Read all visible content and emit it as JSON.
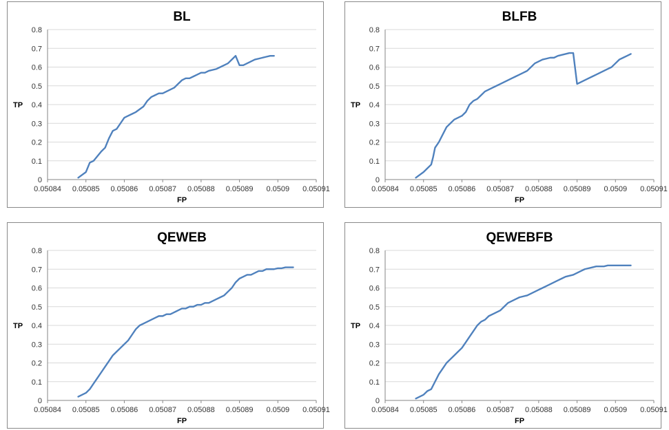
{
  "chart_data": [
    {
      "type": "line",
      "title": "BL",
      "xlabel": "FP",
      "ylabel": "TP",
      "xlim": [
        0.05084,
        0.05091
      ],
      "ylim": [
        0,
        0.8
      ],
      "x_ticks": [
        "0.05084",
        "0.05085",
        "0.05086",
        "0.05087",
        "0.05088",
        "0.05089",
        "0.0509",
        "0.05091"
      ],
      "y_ticks": [
        "0",
        "0.1",
        "0.2",
        "0.3",
        "0.4",
        "0.5",
        "0.6",
        "0.7",
        "0.8"
      ],
      "grid": true,
      "legend": "none",
      "color": "#4f81bd",
      "x": [
        0.050848,
        0.05085,
        0.050851,
        0.050852,
        0.050854,
        0.050855,
        0.050856,
        0.050857,
        0.050858,
        0.050859,
        0.05086,
        0.050861,
        0.050862,
        0.050863,
        0.050865,
        0.050866,
        0.050867,
        0.050868,
        0.050869,
        0.05087,
        0.050871,
        0.050872,
        0.050873,
        0.050874,
        0.050875,
        0.050876,
        0.050877,
        0.050878,
        0.050879,
        0.05088,
        0.050881,
        0.050882,
        0.050884,
        0.050885,
        0.050886,
        0.050887,
        0.050888,
        0.050889,
        0.05089,
        0.050891,
        0.050892,
        0.050893,
        0.050894,
        0.050895,
        0.050896,
        0.050897,
        0.050898,
        0.050899
      ],
      "y": [
        0.01,
        0.04,
        0.09,
        0.1,
        0.15,
        0.17,
        0.22,
        0.26,
        0.27,
        0.3,
        0.33,
        0.34,
        0.35,
        0.36,
        0.39,
        0.42,
        0.44,
        0.45,
        0.46,
        0.46,
        0.47,
        0.48,
        0.49,
        0.51,
        0.53,
        0.54,
        0.54,
        0.55,
        0.56,
        0.57,
        0.57,
        0.58,
        0.59,
        0.6,
        0.61,
        0.62,
        0.64,
        0.66,
        0.61,
        0.61,
        0.62,
        0.63,
        0.64,
        0.645,
        0.65,
        0.655,
        0.66,
        0.66
      ]
    },
    {
      "type": "line",
      "title": "BLFB",
      "xlabel": "FP",
      "ylabel": "TP",
      "xlim": [
        0.05084,
        0.05091
      ],
      "ylim": [
        0,
        0.8
      ],
      "x_ticks": [
        "0.05084",
        "0.05085",
        "0.05086",
        "0.05087",
        "0.05088",
        "0.05089",
        "0.0509",
        "0.05091"
      ],
      "y_ticks": [
        "0",
        "0.1",
        "0.2",
        "0.3",
        "0.4",
        "0.5",
        "0.6",
        "0.7",
        "0.8"
      ],
      "grid": true,
      "legend": "none",
      "color": "#4f81bd",
      "x": [
        0.050848,
        0.05085,
        0.050851,
        0.050852,
        0.0508525,
        0.050853,
        0.050854,
        0.050855,
        0.050856,
        0.050857,
        0.050858,
        0.050859,
        0.05086,
        0.050861,
        0.050862,
        0.050863,
        0.050864,
        0.050865,
        0.050866,
        0.050867,
        0.050868,
        0.050869,
        0.05087,
        0.050871,
        0.050872,
        0.050873,
        0.050874,
        0.050875,
        0.050876,
        0.050877,
        0.050878,
        0.050879,
        0.05088,
        0.050881,
        0.050882,
        0.050883,
        0.050884,
        0.050885,
        0.050886,
        0.050887,
        0.050888,
        0.050889,
        0.05089,
        0.050891,
        0.050892,
        0.050893,
        0.050894,
        0.050895,
        0.050896,
        0.050897,
        0.050898,
        0.050899,
        0.0509,
        0.050901,
        0.050902,
        0.050903,
        0.050904
      ],
      "y": [
        0.01,
        0.04,
        0.06,
        0.08,
        0.12,
        0.17,
        0.2,
        0.24,
        0.28,
        0.3,
        0.32,
        0.33,
        0.34,
        0.36,
        0.4,
        0.42,
        0.43,
        0.45,
        0.47,
        0.48,
        0.49,
        0.5,
        0.51,
        0.52,
        0.53,
        0.54,
        0.55,
        0.56,
        0.57,
        0.58,
        0.6,
        0.62,
        0.63,
        0.64,
        0.645,
        0.65,
        0.65,
        0.66,
        0.665,
        0.67,
        0.675,
        0.675,
        0.51,
        0.52,
        0.53,
        0.54,
        0.55,
        0.56,
        0.57,
        0.58,
        0.59,
        0.6,
        0.62,
        0.64,
        0.65,
        0.66,
        0.67
      ]
    },
    {
      "type": "line",
      "title": "QEWEB",
      "xlabel": "FP",
      "ylabel": "TP",
      "xlim": [
        0.05084,
        0.05091
      ],
      "ylim": [
        0,
        0.8
      ],
      "x_ticks": [
        "0.05084",
        "0.05085",
        "0.05086",
        "0.05087",
        "0.05088",
        "0.05089",
        "0.0509",
        "0.05091"
      ],
      "y_ticks": [
        "0",
        "0.1",
        "0.2",
        "0.3",
        "0.4",
        "0.5",
        "0.6",
        "0.7",
        "0.8"
      ],
      "grid": true,
      "legend": "none",
      "color": "#4f81bd",
      "x": [
        0.050848,
        0.05085,
        0.050851,
        0.050852,
        0.050853,
        0.050854,
        0.050855,
        0.050856,
        0.050857,
        0.050858,
        0.050859,
        0.05086,
        0.050861,
        0.050862,
        0.050863,
        0.050864,
        0.050865,
        0.050866,
        0.050867,
        0.050868,
        0.050869,
        0.05087,
        0.050871,
        0.050872,
        0.050873,
        0.050874,
        0.050875,
        0.050876,
        0.050877,
        0.050878,
        0.050879,
        0.05088,
        0.050881,
        0.050882,
        0.050883,
        0.050884,
        0.050885,
        0.050886,
        0.050887,
        0.050888,
        0.050889,
        0.05089,
        0.050891,
        0.050892,
        0.050893,
        0.050894,
        0.050895,
        0.050896,
        0.050897,
        0.050898,
        0.050899,
        0.0509,
        0.050901,
        0.050902,
        0.050903,
        0.050904
      ],
      "y": [
        0.02,
        0.04,
        0.06,
        0.09,
        0.12,
        0.15,
        0.18,
        0.21,
        0.24,
        0.26,
        0.28,
        0.3,
        0.32,
        0.35,
        0.38,
        0.4,
        0.41,
        0.42,
        0.43,
        0.44,
        0.45,
        0.45,
        0.46,
        0.46,
        0.47,
        0.48,
        0.49,
        0.49,
        0.5,
        0.5,
        0.51,
        0.51,
        0.52,
        0.52,
        0.53,
        0.54,
        0.55,
        0.56,
        0.58,
        0.6,
        0.63,
        0.65,
        0.66,
        0.67,
        0.67,
        0.68,
        0.69,
        0.69,
        0.7,
        0.7,
        0.7,
        0.705,
        0.705,
        0.71,
        0.71,
        0.71
      ]
    },
    {
      "type": "line",
      "title": "QEWEBFB",
      "xlabel": "FP",
      "ylabel": "TP",
      "xlim": [
        0.05084,
        0.05091
      ],
      "ylim": [
        0,
        0.8
      ],
      "x_ticks": [
        "0.05084",
        "0.05085",
        "0.05086",
        "0.05087",
        "0.05088",
        "0.05089",
        "0.0509",
        "0.05091"
      ],
      "y_ticks": [
        "0",
        "0.1",
        "0.2",
        "0.3",
        "0.4",
        "0.5",
        "0.6",
        "0.7",
        "0.8"
      ],
      "grid": true,
      "legend": "none",
      "color": "#4f81bd",
      "x": [
        0.050848,
        0.05085,
        0.050851,
        0.050852,
        0.050853,
        0.050854,
        0.050855,
        0.050856,
        0.050857,
        0.050858,
        0.050859,
        0.05086,
        0.050861,
        0.050862,
        0.050863,
        0.050864,
        0.050865,
        0.050866,
        0.050867,
        0.050868,
        0.050869,
        0.05087,
        0.050871,
        0.050872,
        0.050873,
        0.050874,
        0.050875,
        0.050876,
        0.050877,
        0.050878,
        0.050879,
        0.05088,
        0.050881,
        0.050882,
        0.050883,
        0.050884,
        0.050885,
        0.050886,
        0.050887,
        0.050888,
        0.050889,
        0.05089,
        0.050891,
        0.050892,
        0.050893,
        0.050894,
        0.050895,
        0.050896,
        0.050897,
        0.050898,
        0.050899,
        0.0509,
        0.050901,
        0.050902,
        0.050903,
        0.050904
      ],
      "y": [
        0.01,
        0.03,
        0.05,
        0.06,
        0.1,
        0.14,
        0.17,
        0.2,
        0.22,
        0.24,
        0.26,
        0.28,
        0.31,
        0.34,
        0.37,
        0.4,
        0.42,
        0.43,
        0.45,
        0.46,
        0.47,
        0.48,
        0.5,
        0.52,
        0.53,
        0.54,
        0.55,
        0.555,
        0.56,
        0.57,
        0.58,
        0.59,
        0.6,
        0.61,
        0.62,
        0.63,
        0.64,
        0.65,
        0.66,
        0.665,
        0.67,
        0.68,
        0.69,
        0.7,
        0.705,
        0.71,
        0.715,
        0.715,
        0.715,
        0.72,
        0.72,
        0.72,
        0.72,
        0.72,
        0.72,
        0.72
      ]
    }
  ]
}
